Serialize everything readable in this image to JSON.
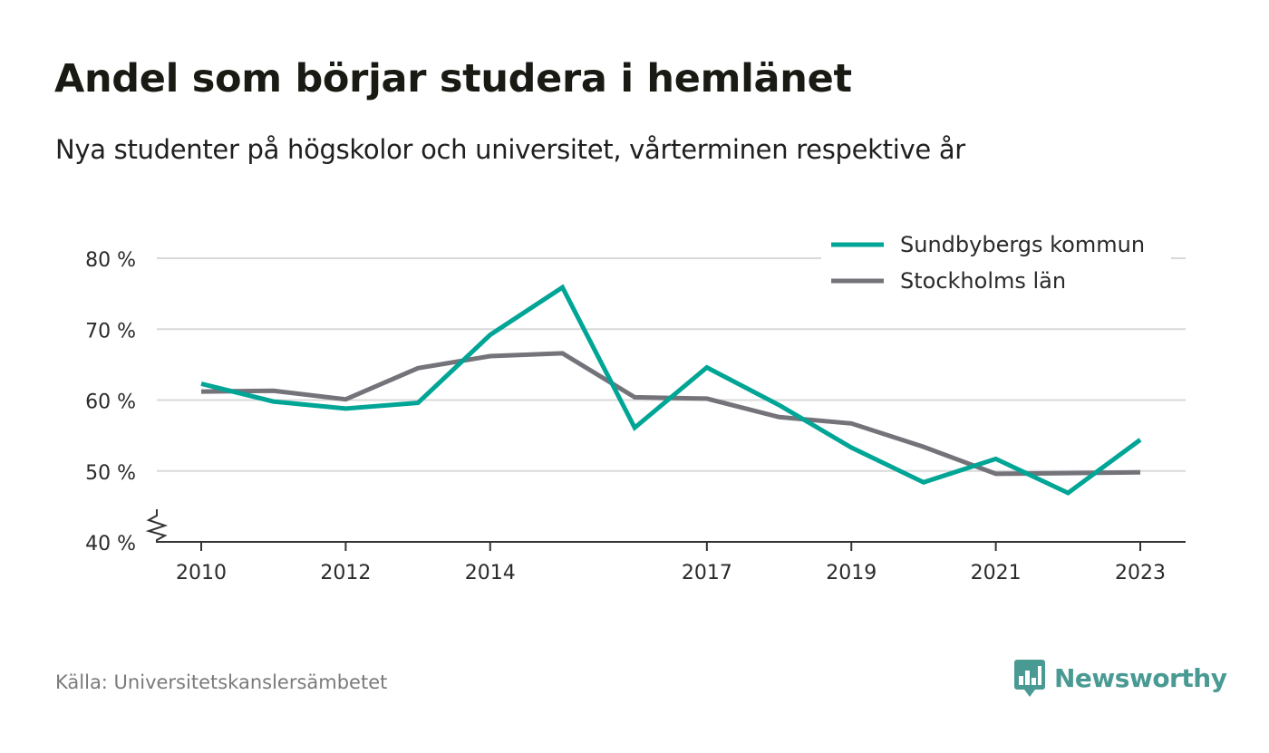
{
  "chart_data": {
    "type": "line",
    "title": "Andel som börjar studera i hemlänet",
    "subtitle": "Nya studenter på högskolor och universitet, vårterminen respektive år",
    "x": [
      2010,
      2011,
      2012,
      2013,
      2014,
      2015,
      2016,
      2017,
      2018,
      2019,
      2020,
      2021,
      2022,
      2023
    ],
    "x_tick_labels": [
      "2010",
      "2012",
      "2014",
      "2017",
      "2019",
      "2021",
      "2023"
    ],
    "y_ticks": [
      40,
      50,
      60,
      70,
      80
    ],
    "y_tick_labels": [
      "40 %",
      "50 %",
      "60 %",
      "70 %",
      "80 %"
    ],
    "ylim": [
      40,
      80
    ],
    "grid": true,
    "legend_position": "top-right",
    "series": [
      {
        "name": "Sundbybergs kommun",
        "color": "#00a596",
        "values": [
          62.3,
          59.8,
          58.8,
          59.6,
          69.2,
          75.9,
          56.1,
          64.6,
          59.3,
          53.3,
          48.4,
          51.7,
          46.9,
          54.4
        ]
      },
      {
        "name": "Stockholms län",
        "color": "#74737a",
        "values": [
          61.2,
          61.3,
          60.1,
          64.5,
          66.2,
          66.6,
          60.4,
          60.2,
          57.6,
          56.7,
          53.4,
          49.6,
          49.7,
          49.8
        ]
      }
    ]
  },
  "footer": {
    "source": "Källa: Universitetskanslersämbetet",
    "brand": "Newsworthy",
    "brand_color": "#4a9a94"
  }
}
